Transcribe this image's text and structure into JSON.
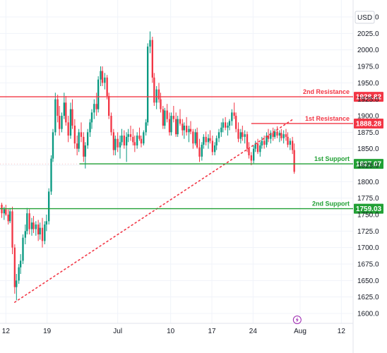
{
  "chart_data": {
    "type": "candlestick",
    "currency": "USD",
    "y_ticks": [
      1600,
      1625,
      1650,
      1675,
      1700,
      1725,
      1750,
      1775,
      1800,
      1825,
      1850,
      1875,
      1900,
      1925,
      1950,
      1975,
      2000,
      2025,
      2050
    ],
    "ylim": [
      1585,
      2065
    ],
    "x_ticks": [
      {
        "day": 12,
        "label": "12"
      },
      {
        "day": 19,
        "label": "19"
      },
      {
        "day": 31,
        "label": "Jul"
      },
      {
        "day": 40,
        "label": "10"
      },
      {
        "day": 47,
        "label": "17"
      },
      {
        "day": 54,
        "label": "24"
      },
      {
        "day": 62,
        "label": "Aug"
      },
      {
        "day": 69,
        "label": "12"
      }
    ],
    "xlim": [
      11,
      71
    ],
    "grid": true,
    "levels": [
      {
        "name": "2nd Resistance",
        "value": 1928.82,
        "badge": "1928.82",
        "color": "#f23645",
        "x_from": 0
      },
      {
        "name": "1st Resistance",
        "value": 1888.28,
        "badge": "1888.28",
        "color": "#f23645",
        "x_from": 53.7
      },
      {
        "name": "1st Support",
        "value": 1827.07,
        "badge": "1827.07",
        "color": "#22a035",
        "x_from": 24.5
      },
      {
        "name": "2nd Support",
        "value": 1759.03,
        "badge": "1759.03",
        "color": "#22a035",
        "x_from": 0
      }
    ],
    "trendline": {
      "from": {
        "day": 13.5,
        "price": 1617
      },
      "to": {
        "day": 61,
        "price": 1896
      },
      "color": "#f23645",
      "style": "dotted"
    },
    "dotted_price_line": {
      "value": 1827,
      "color": "#f23645"
    },
    "last_price": {
      "value": 1812,
      "label": "?"
    },
    "event_marker": {
      "day": 61.5,
      "icon": "lightning-icon",
      "color": "#9c27b0"
    },
    "candles": [
      [
        11.3,
        1765,
        1768,
        1745,
        1752
      ],
      [
        11.7,
        1752,
        1762,
        1742,
        1758
      ],
      [
        12.0,
        1758,
        1765,
        1748,
        1750
      ],
      [
        12.4,
        1750,
        1758,
        1735,
        1740
      ],
      [
        12.7,
        1740,
        1760,
        1737,
        1755
      ],
      [
        13.1,
        1755,
        1762,
        1690,
        1700
      ],
      [
        13.5,
        1700,
        1705,
        1630,
        1640
      ],
      [
        13.8,
        1640,
        1660,
        1620,
        1650
      ],
      [
        14.2,
        1650,
        1675,
        1645,
        1670
      ],
      [
        14.5,
        1670,
        1690,
        1660,
        1680
      ],
      [
        14.9,
        1680,
        1720,
        1675,
        1715
      ],
      [
        15.3,
        1715,
        1735,
        1705,
        1725
      ],
      [
        15.6,
        1725,
        1760,
        1720,
        1752
      ],
      [
        16.0,
        1752,
        1758,
        1720,
        1728
      ],
      [
        16.4,
        1728,
        1745,
        1718,
        1738
      ],
      [
        16.7,
        1738,
        1748,
        1722,
        1728
      ],
      [
        17.1,
        1728,
        1740,
        1718,
        1735
      ],
      [
        17.5,
        1735,
        1742,
        1710,
        1720
      ],
      [
        17.8,
        1720,
        1738,
        1712,
        1730
      ],
      [
        18.2,
        1730,
        1745,
        1700,
        1710
      ],
      [
        18.6,
        1710,
        1740,
        1705,
        1735
      ],
      [
        18.9,
        1735,
        1750,
        1725,
        1740
      ],
      [
        19.3,
        1740,
        1790,
        1735,
        1785
      ],
      [
        19.7,
        1785,
        1840,
        1780,
        1835
      ],
      [
        20.0,
        1835,
        1880,
        1830,
        1875
      ],
      [
        20.4,
        1875,
        1935,
        1870,
        1925
      ],
      [
        20.8,
        1925,
        1932,
        1890,
        1900
      ],
      [
        21.1,
        1900,
        1915,
        1870,
        1880
      ],
      [
        21.5,
        1880,
        1905,
        1875,
        1900
      ],
      [
        21.9,
        1900,
        1935,
        1895,
        1920
      ],
      [
        22.2,
        1920,
        1930,
        1885,
        1890
      ],
      [
        22.6,
        1890,
        1900,
        1860,
        1870
      ],
      [
        23.0,
        1870,
        1920,
        1865,
        1910
      ],
      [
        23.3,
        1910,
        1925,
        1880,
        1885
      ],
      [
        23.7,
        1885,
        1895,
        1850,
        1858
      ],
      [
        24.1,
        1858,
        1870,
        1840,
        1850
      ],
      [
        24.4,
        1850,
        1880,
        1845,
        1875
      ],
      [
        24.8,
        1875,
        1890,
        1860,
        1868
      ],
      [
        25.2,
        1868,
        1875,
        1830,
        1838
      ],
      [
        25.5,
        1838,
        1860,
        1820,
        1855
      ],
      [
        25.9,
        1855,
        1880,
        1850,
        1875
      ],
      [
        26.3,
        1875,
        1895,
        1868,
        1890
      ],
      [
        26.6,
        1890,
        1910,
        1880,
        1905
      ],
      [
        27.0,
        1905,
        1925,
        1895,
        1918
      ],
      [
        27.4,
        1918,
        1935,
        1900,
        1910
      ],
      [
        27.7,
        1910,
        1960,
        1905,
        1955
      ],
      [
        28.1,
        1955,
        1975,
        1945,
        1968
      ],
      [
        28.4,
        1968,
        1975,
        1945,
        1950
      ],
      [
        28.8,
        1950,
        1965,
        1940,
        1958
      ],
      [
        29.2,
        1958,
        1962,
        1925,
        1930
      ],
      [
        29.5,
        1930,
        1935,
        1895,
        1900
      ],
      [
        29.9,
        1900,
        1905,
        1870,
        1875
      ],
      [
        30.3,
        1875,
        1880,
        1840,
        1848
      ],
      [
        30.6,
        1848,
        1870,
        1840,
        1865
      ],
      [
        31.0,
        1865,
        1875,
        1845,
        1852
      ],
      [
        31.4,
        1852,
        1870,
        1835,
        1860
      ],
      [
        31.7,
        1860,
        1880,
        1855,
        1870
      ],
      [
        32.1,
        1870,
        1878,
        1850,
        1855
      ],
      [
        32.5,
        1855,
        1875,
        1830,
        1868
      ],
      [
        32.8,
        1868,
        1880,
        1860,
        1872
      ],
      [
        33.2,
        1872,
        1885,
        1862,
        1868
      ],
      [
        33.6,
        1868,
        1880,
        1855,
        1860
      ],
      [
        33.9,
        1860,
        1870,
        1845,
        1855
      ],
      [
        34.3,
        1855,
        1875,
        1850,
        1870
      ],
      [
        34.7,
        1870,
        1882,
        1862,
        1865
      ],
      [
        35.0,
        1865,
        1870,
        1852,
        1858
      ],
      [
        35.4,
        1858,
        1878,
        1855,
        1875
      ],
      [
        35.8,
        1875,
        1895,
        1870,
        1890
      ],
      [
        36.1,
        1890,
        2010,
        1885,
        2005
      ],
      [
        36.5,
        2005,
        2028,
        1995,
        2015
      ],
      [
        36.9,
        2015,
        2020,
        1950,
        1958
      ],
      [
        37.2,
        1958,
        1965,
        1915,
        1920
      ],
      [
        37.6,
        1920,
        1945,
        1910,
        1940
      ],
      [
        38.0,
        1940,
        1950,
        1920,
        1925
      ],
      [
        38.3,
        1925,
        1935,
        1905,
        1910
      ],
      [
        38.7,
        1910,
        1915,
        1880,
        1885
      ],
      [
        39.0,
        1885,
        1912,
        1880,
        1908
      ],
      [
        39.4,
        1908,
        1918,
        1890,
        1895
      ],
      [
        39.8,
        1895,
        1905,
        1870,
        1875
      ],
      [
        40.1,
        1875,
        1905,
        1870,
        1900
      ],
      [
        40.5,
        1900,
        1915,
        1890,
        1895
      ],
      [
        40.9,
        1895,
        1905,
        1868,
        1872
      ],
      [
        41.2,
        1872,
        1900,
        1868,
        1895
      ],
      [
        41.6,
        1895,
        1910,
        1885,
        1888
      ],
      [
        42.0,
        1888,
        1895,
        1870,
        1878
      ],
      [
        42.3,
        1878,
        1890,
        1865,
        1885
      ],
      [
        42.7,
        1885,
        1898,
        1870,
        1875
      ],
      [
        43.1,
        1875,
        1885,
        1860,
        1880
      ],
      [
        43.4,
        1880,
        1892,
        1872,
        1876
      ],
      [
        43.8,
        1876,
        1880,
        1850,
        1858
      ],
      [
        44.2,
        1858,
        1880,
        1855,
        1875
      ],
      [
        44.5,
        1875,
        1882,
        1850,
        1852
      ],
      [
        44.9,
        1852,
        1865,
        1830,
        1838
      ],
      [
        45.3,
        1838,
        1860,
        1832,
        1856
      ],
      [
        45.6,
        1856,
        1872,
        1850,
        1868
      ],
      [
        46.0,
        1868,
        1876,
        1855,
        1860
      ],
      [
        46.4,
        1860,
        1872,
        1850,
        1866
      ],
      [
        46.7,
        1866,
        1878,
        1858,
        1862
      ],
      [
        47.1,
        1862,
        1870,
        1840,
        1845
      ],
      [
        47.5,
        1845,
        1860,
        1840,
        1855
      ],
      [
        47.8,
        1855,
        1870,
        1848,
        1866
      ],
      [
        48.2,
        1866,
        1880,
        1860,
        1875
      ],
      [
        48.6,
        1875,
        1890,
        1868,
        1882
      ],
      [
        48.9,
        1882,
        1896,
        1875,
        1890
      ],
      [
        49.3,
        1890,
        1898,
        1878,
        1882
      ],
      [
        49.7,
        1882,
        1890,
        1870,
        1885
      ],
      [
        50.0,
        1885,
        1895,
        1878,
        1892
      ],
      [
        50.4,
        1892,
        1910,
        1885,
        1905
      ],
      [
        50.8,
        1905,
        1920,
        1895,
        1900
      ],
      [
        51.1,
        1900,
        1905,
        1875,
        1880
      ],
      [
        51.5,
        1880,
        1890,
        1860,
        1865
      ],
      [
        51.9,
        1865,
        1880,
        1858,
        1875
      ],
      [
        52.2,
        1875,
        1885,
        1862,
        1868
      ],
      [
        52.6,
        1868,
        1878,
        1858,
        1872
      ],
      [
        53.0,
        1872,
        1876,
        1845,
        1850
      ],
      [
        53.3,
        1850,
        1860,
        1835,
        1840
      ],
      [
        53.7,
        1840,
        1845,
        1825,
        1832
      ],
      [
        54.1,
        1832,
        1855,
        1828,
        1850
      ],
      [
        54.4,
        1850,
        1862,
        1845,
        1858
      ],
      [
        54.8,
        1858,
        1865,
        1842,
        1845
      ],
      [
        55.2,
        1845,
        1860,
        1838,
        1855
      ],
      [
        55.5,
        1855,
        1868,
        1850,
        1862
      ],
      [
        55.9,
        1862,
        1870,
        1850,
        1856
      ],
      [
        56.3,
        1856,
        1875,
        1852,
        1870
      ],
      [
        56.6,
        1870,
        1880,
        1860,
        1865
      ],
      [
        57.0,
        1865,
        1878,
        1858,
        1874
      ],
      [
        57.4,
        1874,
        1882,
        1862,
        1868
      ],
      [
        57.7,
        1868,
        1880,
        1865,
        1876
      ],
      [
        58.1,
        1876,
        1884,
        1866,
        1870
      ],
      [
        58.5,
        1870,
        1878,
        1860,
        1874
      ],
      [
        58.8,
        1874,
        1880,
        1862,
        1866
      ],
      [
        59.2,
        1866,
        1878,
        1858,
        1872
      ],
      [
        59.6,
        1872,
        1880,
        1862,
        1868
      ],
      [
        59.9,
        1868,
        1875,
        1852,
        1856
      ],
      [
        60.3,
        1856,
        1866,
        1848,
        1862
      ],
      [
        60.7,
        1862,
        1868,
        1842,
        1848
      ],
      [
        61.0,
        1848,
        1858,
        1812,
        1815
      ]
    ]
  }
}
